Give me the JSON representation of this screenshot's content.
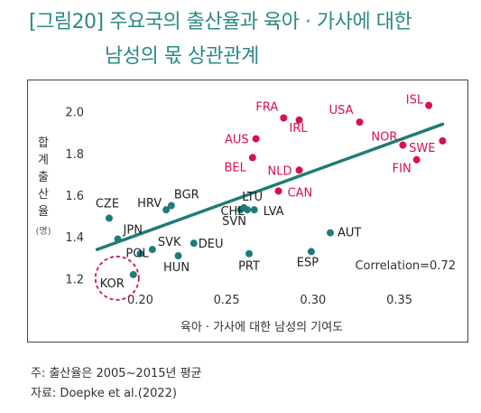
{
  "header": {
    "title_line1": "[그림20] 주요국의 출산율과 육아 · 가사에 대한",
    "title_line2": "남성의 몫 상관관계"
  },
  "notes": {
    "note1": "주: 출산율은 2005~2015년 평균",
    "note2": "자료: Doepke et al.(2022)"
  },
  "colors": {
    "accent": "#2a8a86",
    "teal_dot": "#1f7b78",
    "red_dot": "#d6114e",
    "trend": "#1f7b78",
    "highlight_circle": "#d6114e"
  },
  "chart_data": {
    "type": "scatter",
    "xlabel": "육아 · 가사에 대한 남성의 기여도",
    "ylabel": "합계출산율",
    "ylabel_unit": "(명)",
    "xlim": [
      0.17,
      0.38
    ],
    "ylim": [
      1.15,
      2.05
    ],
    "xticks": [
      "0.20",
      "0.25",
      "0.30",
      "0.35"
    ],
    "xtick_values": [
      0.2,
      0.25,
      0.3,
      0.35
    ],
    "yticks": [
      "2.0",
      "1.8",
      "1.6",
      "1.4",
      "1.2"
    ],
    "ytick_values": [
      2.0,
      1.8,
      1.6,
      1.4,
      1.2
    ],
    "grid": false,
    "annotation": "Correlation=0.72",
    "trend_line": {
      "x": [
        0.175,
        0.375
      ],
      "y": [
        1.34,
        1.94
      ]
    },
    "highlight": "KOR",
    "points": [
      {
        "label": "FRA",
        "x": 0.283,
        "y": 1.97,
        "group": "high"
      },
      {
        "label": "IRL",
        "x": 0.292,
        "y": 1.96,
        "group": "high"
      },
      {
        "label": "USA",
        "x": 0.327,
        "y": 1.95,
        "group": "high"
      },
      {
        "label": "ISL",
        "x": 0.367,
        "y": 2.03,
        "group": "high"
      },
      {
        "label": "AUS",
        "x": 0.267,
        "y": 1.87,
        "group": "high"
      },
      {
        "label": "NOR",
        "x": 0.352,
        "y": 1.84,
        "group": "high"
      },
      {
        "label": "SWE",
        "x": 0.375,
        "y": 1.86,
        "group": "high"
      },
      {
        "label": "BEL",
        "x": 0.265,
        "y": 1.78,
        "group": "high"
      },
      {
        "label": "FIN",
        "x": 0.36,
        "y": 1.77,
        "group": "high"
      },
      {
        "label": "NLD",
        "x": 0.292,
        "y": 1.72,
        "group": "high"
      },
      {
        "label": "CAN",
        "x": 0.28,
        "y": 1.62,
        "group": "high"
      },
      {
        "label": "CZE",
        "x": 0.182,
        "y": 1.49,
        "group": "low"
      },
      {
        "label": "JPN",
        "x": 0.187,
        "y": 1.39,
        "group": "low"
      },
      {
        "label": "HRV",
        "x": 0.215,
        "y": 1.53,
        "group": "low"
      },
      {
        "label": "BGR",
        "x": 0.218,
        "y": 1.55,
        "group": "low"
      },
      {
        "label": "CHE",
        "x": 0.258,
        "y": 1.53,
        "group": "low"
      },
      {
        "label": "LTU",
        "x": 0.26,
        "y": 1.54,
        "group": "low"
      },
      {
        "label": "SVN",
        "x": 0.262,
        "y": 1.53,
        "group": "low"
      },
      {
        "label": "LVA",
        "x": 0.266,
        "y": 1.53,
        "group": "low"
      },
      {
        "label": "AUT",
        "x": 0.31,
        "y": 1.42,
        "group": "low"
      },
      {
        "label": "SVK",
        "x": 0.207,
        "y": 1.34,
        "group": "low"
      },
      {
        "label": "DEU",
        "x": 0.231,
        "y": 1.37,
        "group": "low"
      },
      {
        "label": "POL",
        "x": 0.2,
        "y": 1.32,
        "group": "low"
      },
      {
        "label": "HUN",
        "x": 0.222,
        "y": 1.31,
        "group": "low"
      },
      {
        "label": "PRT",
        "x": 0.263,
        "y": 1.32,
        "group": "low"
      },
      {
        "label": "ESP",
        "x": 0.299,
        "y": 1.33,
        "group": "low"
      },
      {
        "label": "KOR",
        "x": 0.196,
        "y": 1.22,
        "group": "low"
      }
    ]
  }
}
